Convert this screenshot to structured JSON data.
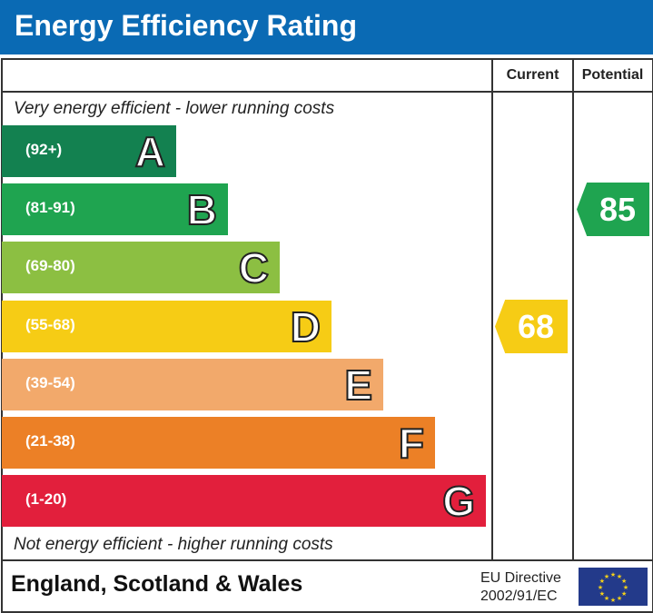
{
  "header": {
    "title": "Energy Efficiency Rating"
  },
  "columns": {
    "current": "Current",
    "potential": "Potential"
  },
  "notes": {
    "top": "Very energy efficient - lower running costs",
    "bottom": "Not energy efficient - higher running costs"
  },
  "chart_data": {
    "type": "bar",
    "bands": [
      {
        "letter": "A",
        "range": "(92+)",
        "color": "#138150",
        "min": 92,
        "max": 100
      },
      {
        "letter": "B",
        "range": "(81-91)",
        "color": "#1fa450",
        "min": 81,
        "max": 91
      },
      {
        "letter": "C",
        "range": "(69-80)",
        "color": "#8cbf42",
        "min": 69,
        "max": 80
      },
      {
        "letter": "D",
        "range": "(55-68)",
        "color": "#f6cc15",
        "min": 55,
        "max": 68
      },
      {
        "letter": "E",
        "range": "(39-54)",
        "color": "#f2a96b",
        "min": 39,
        "max": 54
      },
      {
        "letter": "F",
        "range": "(21-38)",
        "color": "#ec8026",
        "min": 21,
        "max": 38
      },
      {
        "letter": "G",
        "range": "(1-20)",
        "color": "#e21f3c",
        "min": 1,
        "max": 20
      }
    ],
    "current": {
      "value": 68,
      "label": "68"
    },
    "potential": {
      "value": 85,
      "label": "85"
    }
  },
  "footer": {
    "region": "England, Scotland & Wales",
    "directive_line1": "EU Directive",
    "directive_line2": "2002/91/EC",
    "flag_icon": "eu-flag-icon"
  }
}
